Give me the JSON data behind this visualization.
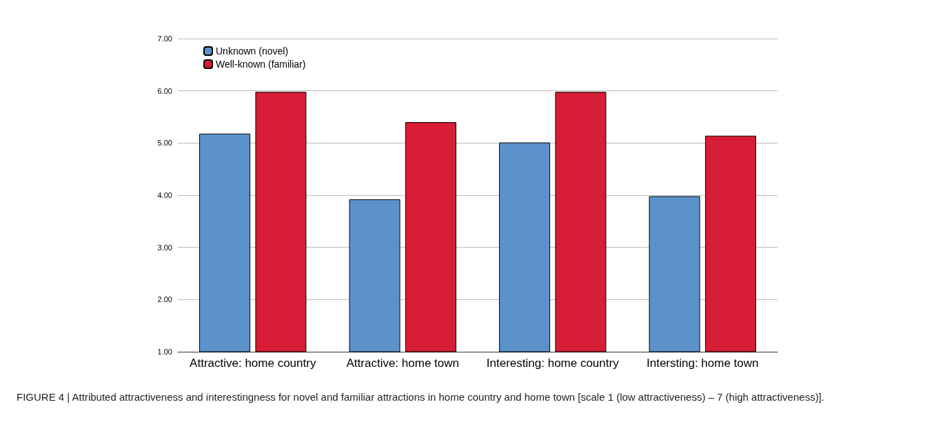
{
  "chart_data": {
    "type": "bar",
    "categories": [
      "Attractive: home country",
      "Attractive: home town",
      "Interesting: home country",
      "Intersting: home town"
    ],
    "series": [
      {
        "name": "Unknown (novel)",
        "color": "#5b92cb",
        "values": [
          5.18,
          3.92,
          5.01,
          3.98
        ]
      },
      {
        "name": "Well-known (familiar)",
        "color": "#d81d36",
        "values": [
          5.98,
          5.4,
          5.98,
          5.14
        ]
      }
    ],
    "ylim": [
      1,
      7
    ],
    "yticks": [
      {
        "value": 1,
        "label": "1.00"
      },
      {
        "value": 2,
        "label": "2.00"
      },
      {
        "value": 3,
        "label": "3.00"
      },
      {
        "value": 4,
        "label": "4.00"
      },
      {
        "value": 5,
        "label": "5.00"
      },
      {
        "value": 6,
        "label": "6.00"
      },
      {
        "value": 7,
        "label": "7.00"
      }
    ],
    "grid": "y",
    "legend": "top left",
    "annotations": [
      "FIGURE 4 | Attributed attractiveness and interestingness for novel and familiar attractions in home country and home town [scale 1 (low attractiveness) – 7 (high attractiveness)]."
    ]
  }
}
